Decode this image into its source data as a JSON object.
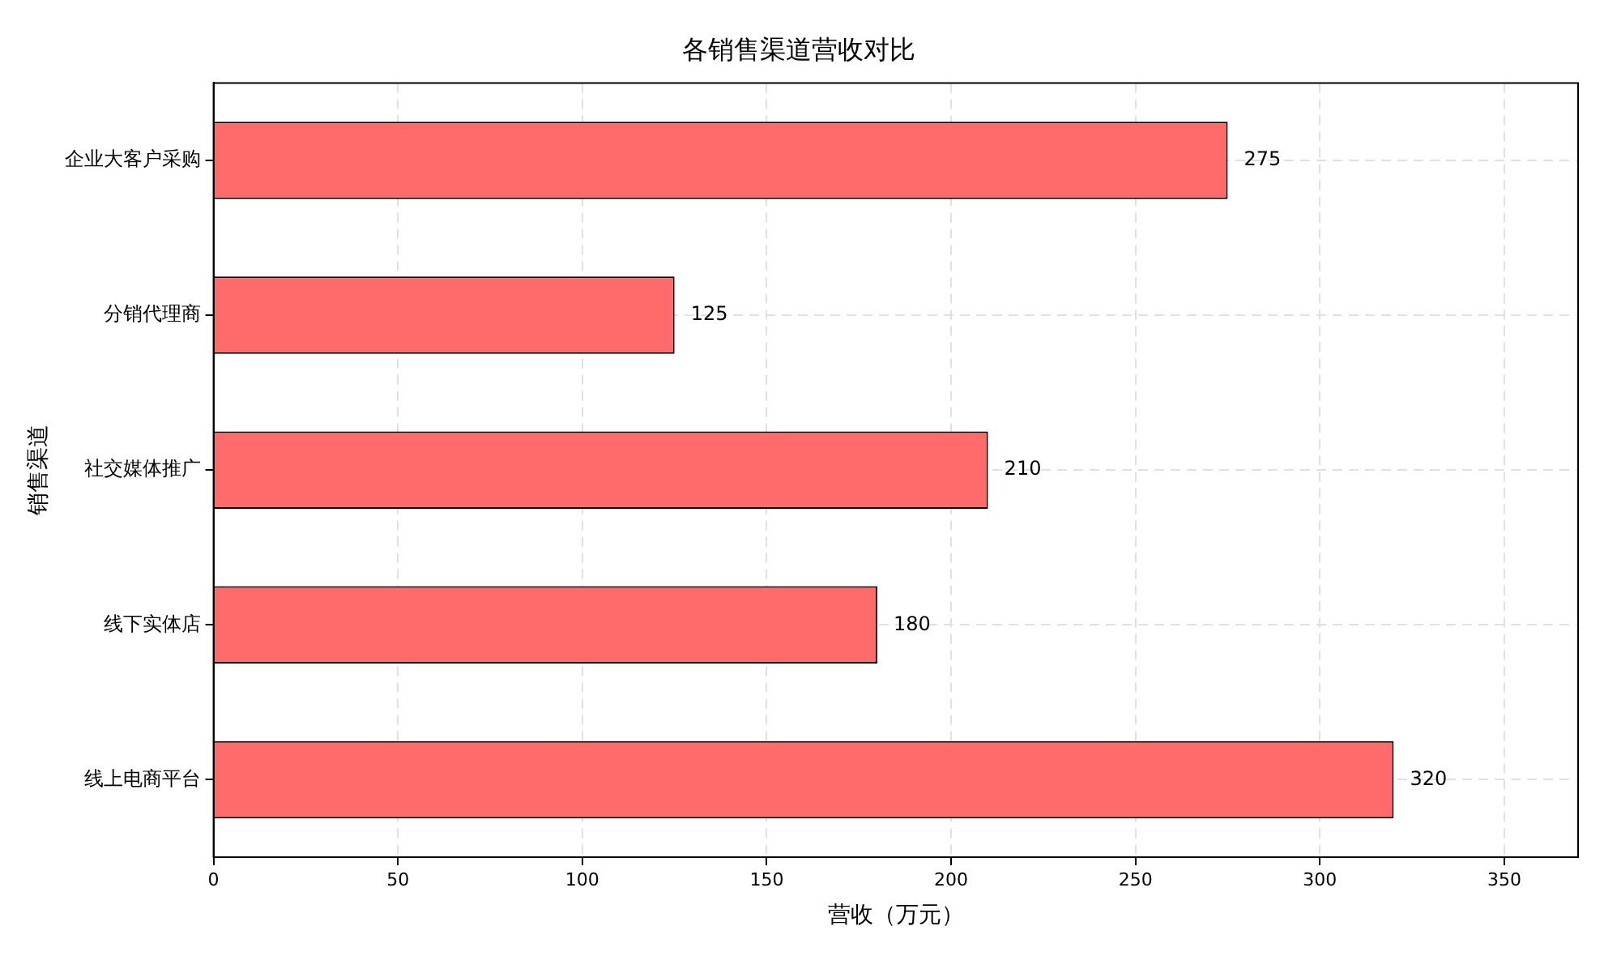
{
  "chart_data": {
    "type": "bar",
    "orientation": "horizontal",
    "title": "各销售渠道营收对比",
    "xlabel": "营收（万元）",
    "ylabel": "销售渠道",
    "categories": [
      "企业大客户采购",
      "分销代理商",
      "社交媒体推广",
      "线下实体店",
      "线上电商平台"
    ],
    "values": [
      275,
      125,
      210,
      180,
      320
    ],
    "color": "#ff6b6b",
    "xlim": [
      0,
      370
    ],
    "xticks": [
      0,
      50,
      100,
      150,
      200,
      250,
      300,
      350
    ],
    "grid": true,
    "data_labels": true,
    "legend": false
  }
}
